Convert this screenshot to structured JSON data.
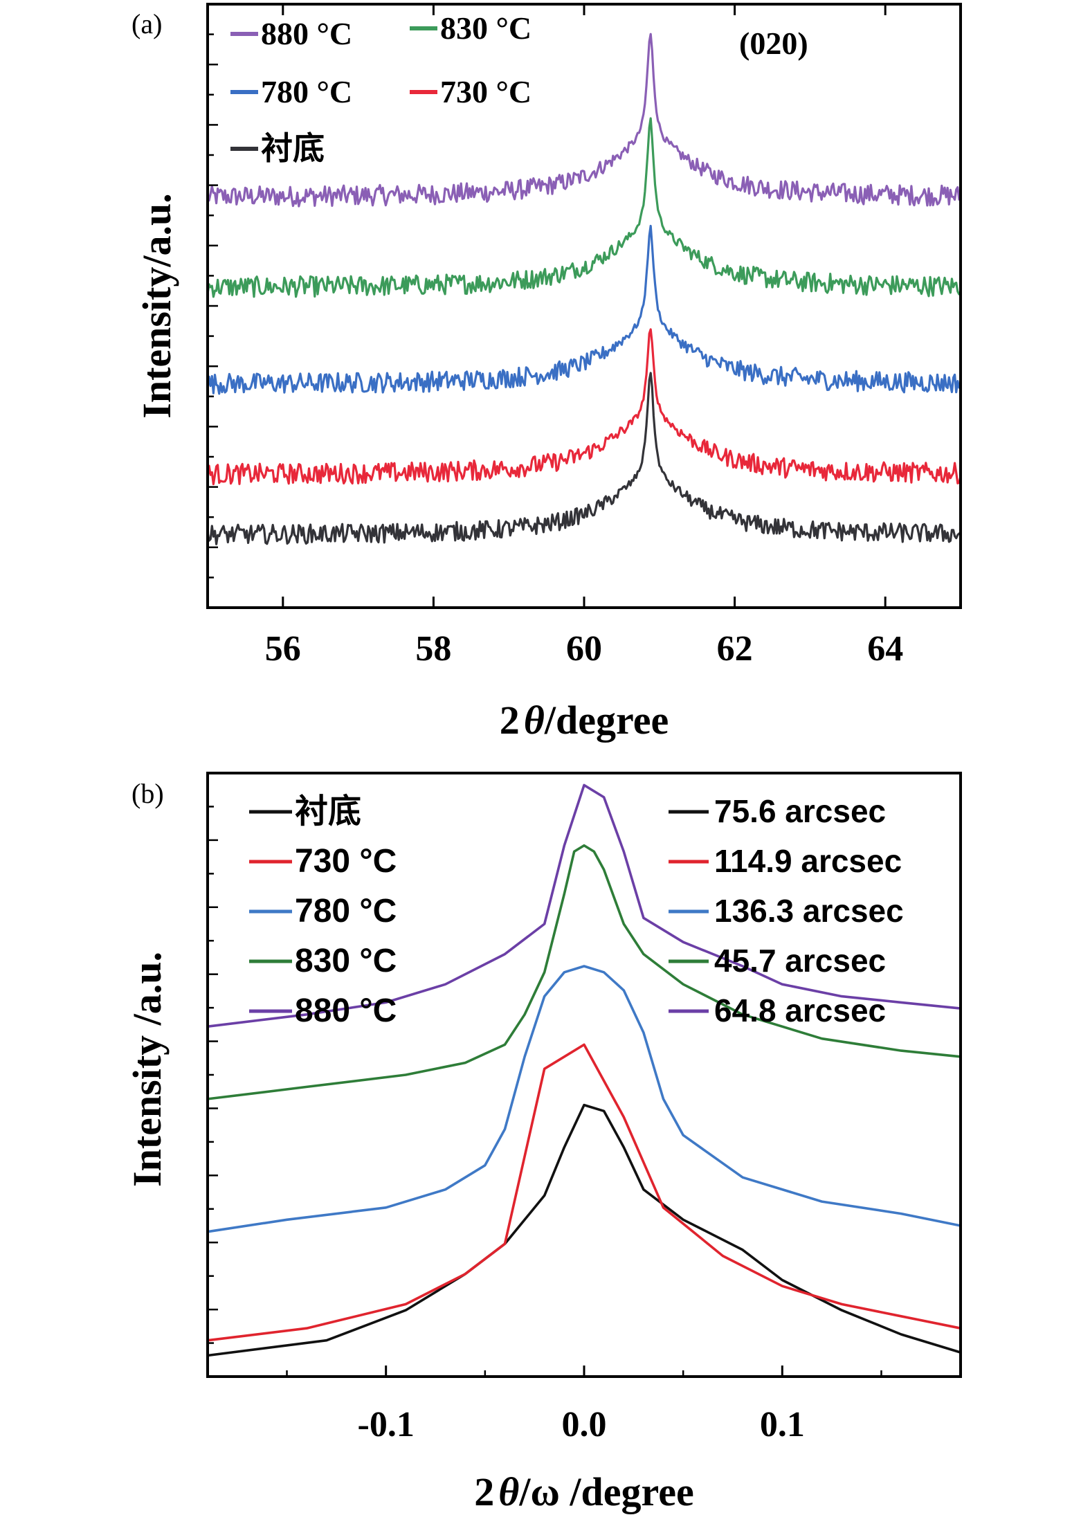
{
  "chart_data": [
    {
      "type": "line",
      "panel_label": "(a)",
      "annotation": "(020)",
      "xlabel_prefix": "2",
      "xlabel_symbol": "θ",
      "xlabel_suffix": "/degree",
      "ylabel": "Intensity/a.u.",
      "xlim": [
        55,
        65
      ],
      "ylim": [
        0,
        1
      ],
      "xticks": [
        56,
        58,
        60,
        62,
        64
      ],
      "y_tick_labels_shown": false,
      "legend_position": "top-left",
      "peak_position": 60.88,
      "series": [
        {
          "name": "880 °C",
          "color": "#8a5fb5",
          "baseline": 0.68,
          "peak_height": 0.27,
          "noise": 0.017
        },
        {
          "name": "830 °C",
          "color": "#3c9b5a",
          "baseline": 0.53,
          "peak_height": 0.28,
          "noise": 0.017
        },
        {
          "name": "780 °C",
          "color": "#3a6fc4",
          "baseline": 0.37,
          "peak_height": 0.26,
          "noise": 0.017
        },
        {
          "name": "730 °C",
          "color": "#e8283a",
          "baseline": 0.22,
          "peak_height": 0.24,
          "noise": 0.017
        },
        {
          "name": "衬底",
          "color": "#333338",
          "baseline": 0.12,
          "peak_height": 0.27,
          "noise": 0.016
        }
      ]
    },
    {
      "type": "line",
      "panel_label": "(b)",
      "xlabel_prefix": "2",
      "xlabel_symbol": "θ",
      "xlabel_suffix": "/ω /degree",
      "ylabel": "Intensity /a.u.",
      "xlim": [
        -0.19,
        0.19
      ],
      "ylim": [
        0,
        1
      ],
      "xticks": [
        -0.1,
        0.0,
        0.1
      ],
      "xtick_labels": [
        "-0.1",
        "0.0",
        "0.1"
      ],
      "y_tick_labels_shown": false,
      "legend_position": "top-left",
      "legend2_position": "top-right",
      "series": [
        {
          "name": "衬底",
          "fwhm_label": "75.6 arcsec",
          "color": "#111111",
          "x": [
            -0.19,
            -0.13,
            -0.09,
            -0.06,
            -0.04,
            -0.02,
            -0.01,
            0.0,
            0.01,
            0.02,
            0.03,
            0.05,
            0.08,
            0.1,
            0.13,
            0.16,
            0.19
          ],
          "y": [
            0.035,
            0.06,
            0.11,
            0.17,
            0.22,
            0.3,
            0.38,
            0.45,
            0.44,
            0.38,
            0.31,
            0.26,
            0.21,
            0.16,
            0.11,
            0.07,
            0.04
          ]
        },
        {
          "name": "730 °C",
          "fwhm_label": "114.9 arcsec",
          "color": "#e0242e",
          "x": [
            -0.19,
            -0.14,
            -0.09,
            -0.06,
            -0.04,
            -0.02,
            0.0,
            0.02,
            0.04,
            0.07,
            0.1,
            0.13,
            0.16,
            0.19
          ],
          "y": [
            0.06,
            0.08,
            0.12,
            0.17,
            0.22,
            0.51,
            0.55,
            0.43,
            0.28,
            0.2,
            0.15,
            0.12,
            0.1,
            0.08
          ]
        },
        {
          "name": "780 °C",
          "fwhm_label": "136.3 arcsec",
          "color": "#3f79c6",
          "x": [
            -0.19,
            -0.15,
            -0.1,
            -0.07,
            -0.05,
            -0.04,
            -0.03,
            -0.02,
            -0.01,
            0.0,
            0.01,
            0.02,
            0.03,
            0.04,
            0.05,
            0.08,
            0.12,
            0.16,
            0.19
          ],
          "y": [
            0.24,
            0.26,
            0.28,
            0.31,
            0.35,
            0.41,
            0.53,
            0.63,
            0.67,
            0.68,
            0.67,
            0.64,
            0.57,
            0.46,
            0.4,
            0.33,
            0.29,
            0.27,
            0.25
          ]
        },
        {
          "name": "830 °C",
          "fwhm_label": "45.7 arcsec",
          "color": "#2e7d38",
          "x": [
            -0.19,
            -0.14,
            -0.09,
            -0.06,
            -0.04,
            -0.03,
            -0.02,
            -0.01,
            -0.005,
            0.0,
            0.005,
            0.01,
            0.02,
            0.03,
            0.05,
            0.08,
            0.12,
            0.16,
            0.19
          ],
          "y": [
            0.46,
            0.48,
            0.5,
            0.52,
            0.55,
            0.6,
            0.67,
            0.8,
            0.87,
            0.88,
            0.87,
            0.84,
            0.75,
            0.7,
            0.65,
            0.6,
            0.56,
            0.54,
            0.53
          ]
        },
        {
          "name": "880 °C",
          "fwhm_label": "64.8 arcsec",
          "color": "#6b3fa6",
          "x": [
            -0.19,
            -0.14,
            -0.1,
            -0.07,
            -0.04,
            -0.02,
            -0.01,
            0.0,
            0.01,
            0.02,
            0.03,
            0.05,
            0.08,
            0.1,
            0.13,
            0.16,
            0.19
          ],
          "y": [
            0.58,
            0.6,
            0.62,
            0.65,
            0.7,
            0.75,
            0.88,
            0.98,
            0.96,
            0.87,
            0.76,
            0.72,
            0.68,
            0.65,
            0.63,
            0.62,
            0.61
          ]
        }
      ]
    }
  ]
}
